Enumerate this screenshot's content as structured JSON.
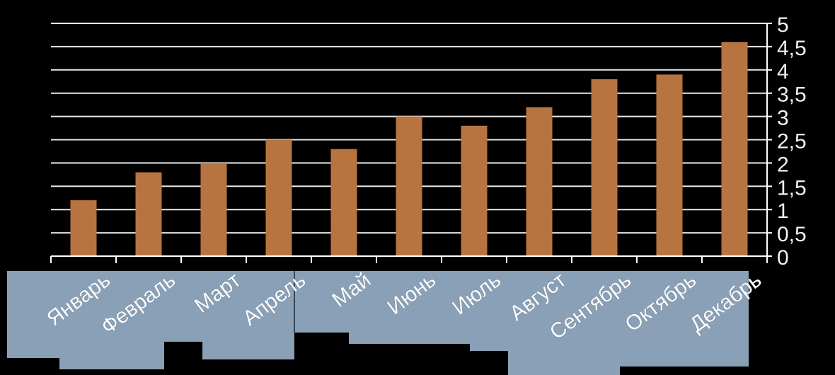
{
  "chart_data": {
    "type": "bar",
    "categories": [
      "Январь",
      "Февраль",
      "Март",
      "Апрель",
      "Май",
      "Июнь",
      "Июль",
      "Август",
      "Сентябрь",
      "Октябрь",
      "Декабрь"
    ],
    "values": [
      1.2,
      1.8,
      2.0,
      2.5,
      2.3,
      3.0,
      2.8,
      3.2,
      3.8,
      3.9,
      4.6
    ],
    "ylim": [
      0,
      5
    ],
    "yticks": [
      "0",
      "0,5",
      "1",
      "1,5",
      "2",
      "2,5",
      "3",
      "3,5",
      "4",
      "4,5",
      "5"
    ],
    "y_axis_position": "right",
    "grid": true,
    "title": "",
    "xlabel": "",
    "ylabel": ""
  },
  "colors": {
    "background": "#000000",
    "bar": "#B87440",
    "grid": "#E8E8E8",
    "axis": "#FFFFFF",
    "tick_text": "#F2F2F2",
    "label_panel": "#8AA0B6",
    "label_text": "#FFFFFF"
  }
}
